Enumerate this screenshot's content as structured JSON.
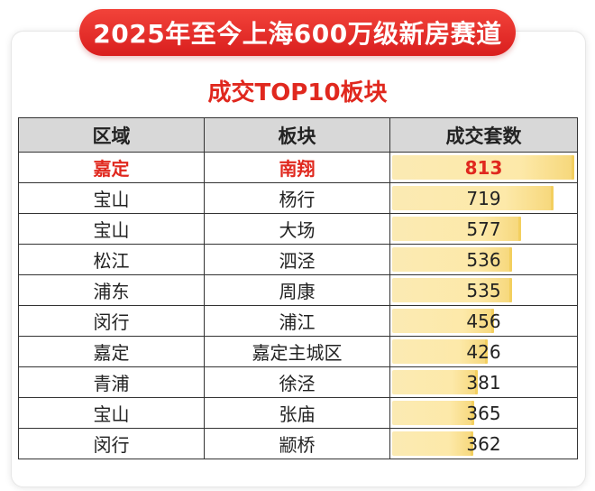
{
  "header": {
    "title": "2025年至今上海600万级新房赛道",
    "subtitle": "成交TOP10板块"
  },
  "chart_data": {
    "type": "table",
    "columns": [
      "区域",
      "板块",
      "成交套数"
    ],
    "rows": [
      {
        "district": "嘉定",
        "block": "南翔",
        "value": 813
      },
      {
        "district": "宝山",
        "block": "杨行",
        "value": 719
      },
      {
        "district": "宝山",
        "block": "大场",
        "value": 577
      },
      {
        "district": "松江",
        "block": "泗泾",
        "value": 536
      },
      {
        "district": "浦东",
        "block": "周康",
        "value": 535
      },
      {
        "district": "闵行",
        "block": "浦江",
        "value": 456
      },
      {
        "district": "嘉定",
        "block": "嘉定主城区",
        "value": 426
      },
      {
        "district": "青浦",
        "block": "徐泾",
        "value": 381
      },
      {
        "district": "宝山",
        "block": "张庙",
        "value": 365
      },
      {
        "district": "闵行",
        "block": "颛桥",
        "value": 362
      }
    ],
    "highlight_row": 0,
    "bar_color": "#fbe7a6",
    "highlight_color": "#e0281e"
  }
}
